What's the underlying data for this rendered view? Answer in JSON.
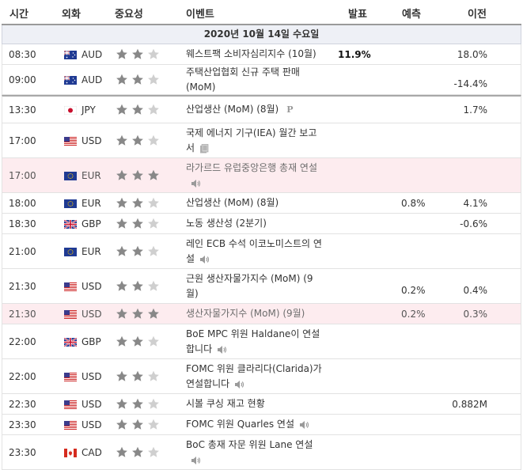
{
  "columns": {
    "time": "시간",
    "currency": "외화",
    "importance": "중요성",
    "event": "이벤트",
    "actual": "발표",
    "forecast": "예측",
    "previous": "이전"
  },
  "date_header": "2020년 10월 14일 수요일",
  "colors": {
    "star_on": "#888888",
    "star_off": "#cfcfcf",
    "highlight_row": "#fdecef",
    "date_bar": "#eef0f6"
  },
  "events": [
    {
      "time": "08:30",
      "flag": "australia-flag",
      "currency": "AUD",
      "stars": 2,
      "event": "웨스트팩 소비자심리지수 (10월)",
      "icon": "",
      "actual": "11.9%",
      "forecast": "",
      "previous": "18.0%",
      "highlight": false,
      "separator": false
    },
    {
      "time": "09:00",
      "flag": "australia-flag",
      "currency": "AUD",
      "stars": 2,
      "event": "주택산업협회 신규 주택 판매 (MoM)",
      "icon": "",
      "actual": "",
      "forecast": "",
      "previous": "-14.4%",
      "highlight": false,
      "separator": false
    },
    {
      "time": "13:30",
      "flag": "japan-flag",
      "currency": "JPY",
      "stars": 2,
      "event": "산업생산 (MoM) (8월)",
      "icon": "preliminary",
      "icon_text": "P",
      "actual": "",
      "forecast": "",
      "previous": "1.7%",
      "highlight": false,
      "separator": true
    },
    {
      "time": "17:00",
      "flag": "usa-flag",
      "currency": "USD",
      "stars": 2,
      "event": "국제 에너지 기구(IEA) 월간 보고서",
      "icon": "report",
      "actual": "",
      "forecast": "",
      "previous": "",
      "highlight": false,
      "separator": false
    },
    {
      "time": "17:00",
      "flag": "eu-flag",
      "currency": "EUR",
      "stars": 3,
      "event": "라가르드 유럽중앙은행 총재 연설",
      "icon": "speech",
      "actual": "",
      "forecast": "",
      "previous": "",
      "highlight": true,
      "separator": false
    },
    {
      "time": "18:00",
      "flag": "eu-flag",
      "currency": "EUR",
      "stars": 2,
      "event": "산업생산 (MoM) (8월)",
      "icon": "",
      "actual": "",
      "forecast": "0.8%",
      "previous": "4.1%",
      "highlight": false,
      "separator": false
    },
    {
      "time": "18:30",
      "flag": "uk-flag",
      "currency": "GBP",
      "stars": 2,
      "event": "노동 생산성 (2분기)",
      "icon": "",
      "actual": "",
      "forecast": "",
      "previous": "-0.6%",
      "highlight": false,
      "separator": false
    },
    {
      "time": "21:00",
      "flag": "eu-flag",
      "currency": "EUR",
      "stars": 2,
      "event": "레인 ECB 수석 이코노미스트의 연설",
      "icon": "speech",
      "actual": "",
      "forecast": "",
      "previous": "",
      "highlight": false,
      "separator": false
    },
    {
      "time": "21:30",
      "flag": "usa-flag",
      "currency": "USD",
      "stars": 2,
      "event": "근원 생산자물가지수 (MoM) (9월)",
      "icon": "",
      "actual": "",
      "forecast": "0.2%",
      "previous": "0.4%",
      "highlight": false,
      "separator": false
    },
    {
      "time": "21:30",
      "flag": "usa-flag",
      "currency": "USD",
      "stars": 3,
      "event": "생산자물가지수 (MoM) (9월)",
      "icon": "",
      "actual": "",
      "forecast": "0.2%",
      "previous": "0.3%",
      "highlight": true,
      "separator": false
    },
    {
      "time": "22:00",
      "flag": "uk-flag",
      "currency": "GBP",
      "stars": 2,
      "event": "BoE MPC 위원 Haldane이 연설합니다",
      "icon": "speech",
      "actual": "",
      "forecast": "",
      "previous": "",
      "highlight": false,
      "separator": false
    },
    {
      "time": "22:00",
      "flag": "usa-flag",
      "currency": "USD",
      "stars": 2,
      "event": "FOMC 위원 클라리다(Clarida)가 연설합니다",
      "icon": "speech",
      "actual": "",
      "forecast": "",
      "previous": "",
      "highlight": false,
      "separator": false
    },
    {
      "time": "22:30",
      "flag": "usa-flag",
      "currency": "USD",
      "stars": 2,
      "event": "시볼 쿠싱 재고 현황",
      "icon": "",
      "actual": "",
      "forecast": "",
      "previous": "0.882M",
      "highlight": false,
      "separator": false
    },
    {
      "time": "23:30",
      "flag": "usa-flag",
      "currency": "USD",
      "stars": 2,
      "event": "FOMC 위원 Quarles 연설",
      "icon": "speech",
      "actual": "",
      "forecast": "",
      "previous": "",
      "highlight": false,
      "separator": false
    },
    {
      "time": "23:30",
      "flag": "canada-flag",
      "currency": "CAD",
      "stars": 2,
      "event": "BoC 총재 자문 위원 Lane 연설",
      "icon": "speech",
      "actual": "",
      "forecast": "",
      "previous": "",
      "highlight": false,
      "separator": false
    }
  ]
}
